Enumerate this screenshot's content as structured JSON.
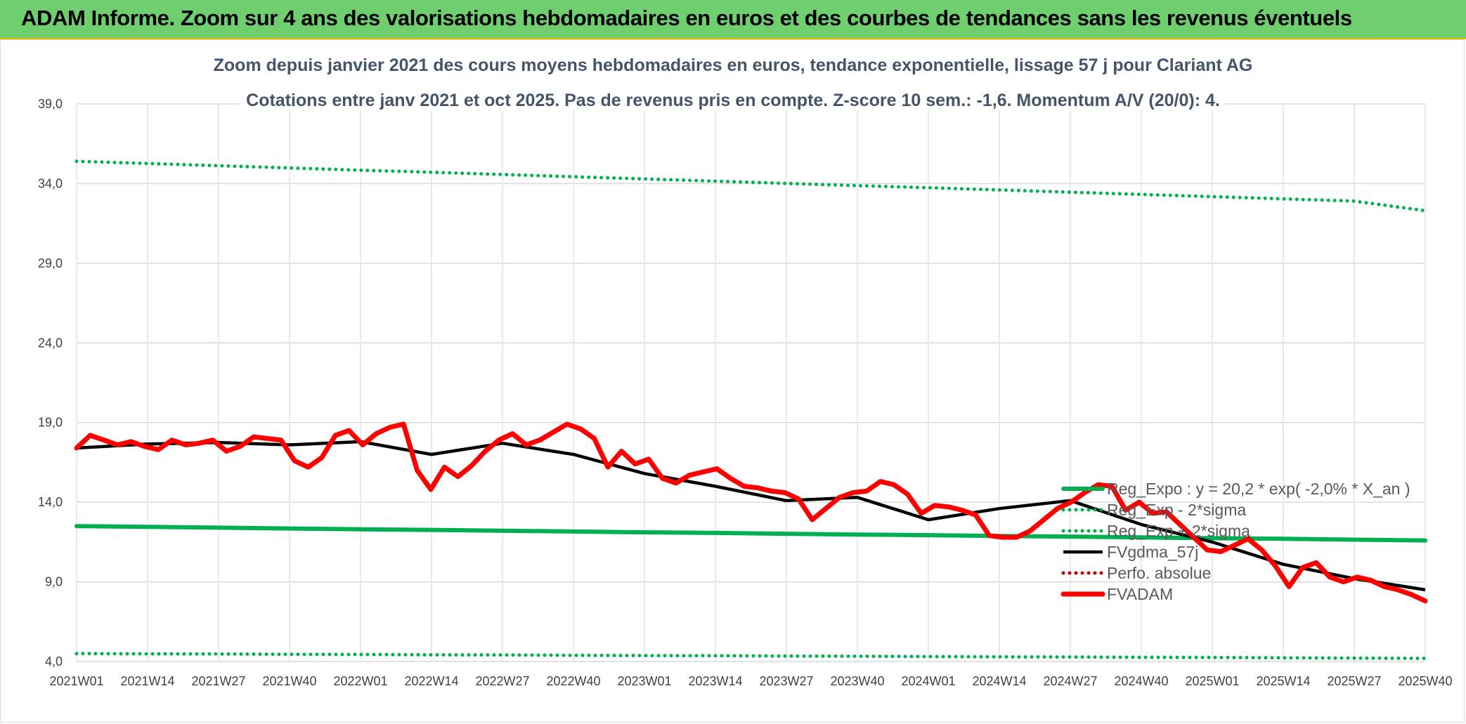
{
  "header": {
    "title": "ADAM Informe. Zoom sur 4 ans des valorisations hebdomadaires en euros et des courbes de tendances sans les revenus éventuels"
  },
  "chart_data": {
    "type": "line",
    "title": "Zoom depuis janvier 2021 des cours moyens hebdomadaires en euros, tendance exponentielle, lissage 57 j pour Clariant AG",
    "subtitle": "Cotations entre janv 2021 et oct 2025. Pas de revenus pris en compte. Z-score 10 sem.: -1,6. Momentum A/V (20/0): 4.",
    "xlabel": "",
    "ylabel": "",
    "ylim": [
      4,
      39
    ],
    "yticks": [
      "4,0",
      "9,0",
      "14,0",
      "19,0",
      "24,0",
      "29,0",
      "34,0",
      "39,0"
    ],
    "x_tick_labels": [
      "2021W01",
      "2021W14",
      "2021W27",
      "2021W40",
      "2022W01",
      "2022W14",
      "2022W27",
      "2022W40",
      "2023W01",
      "2023W14",
      "2023W27",
      "2023W40",
      "2024W01",
      "2024W14",
      "2024W27",
      "2024W40",
      "2025W01",
      "2025W14",
      "2025W27",
      "2025W40"
    ],
    "x_week_count": 247,
    "grid": true,
    "legend_position": "right",
    "colors": {
      "trend": "#00b050",
      "band": "#00b050",
      "smooth": "#000000",
      "perf": "#c00000",
      "price": "#ff0000",
      "grid": "#d9d9d9"
    },
    "series": [
      {
        "name": "Reg_Expo : y = 20,2 * exp( -2,0% *  X_an )",
        "style": "thick-solid",
        "color": "#00b050",
        "values": [
          12.5,
          12.45,
          12.4,
          12.35,
          12.3,
          12.26,
          12.21,
          12.16,
          12.11,
          12.07,
          12.02,
          11.97,
          11.93,
          11.88,
          11.84,
          11.79,
          11.74,
          11.7,
          11.65,
          11.6
        ]
      },
      {
        "name": "Reg_Exp - 2*sigma",
        "style": "dotted",
        "color": "#00b050",
        "values": [
          4.5,
          4.48,
          4.47,
          4.45,
          4.44,
          4.42,
          4.41,
          4.39,
          4.37,
          4.36,
          4.34,
          4.33,
          4.31,
          4.29,
          4.28,
          4.26,
          4.25,
          4.23,
          4.21,
          4.2
        ]
      },
      {
        "name": "Reg_Exp + 2*sigma",
        "style": "dotted",
        "color": "#00b050",
        "values": [
          35.4,
          35.26,
          35.12,
          34.98,
          34.84,
          34.71,
          34.57,
          34.43,
          34.29,
          34.15,
          34.01,
          33.87,
          33.74,
          33.6,
          33.46,
          33.32,
          33.18,
          33.04,
          32.9,
          32.3
        ]
      },
      {
        "name": "FVgdma_57j",
        "style": "solid",
        "color": "#000000",
        "values": [
          17.4,
          17.65,
          17.75,
          17.6,
          17.8,
          17.0,
          17.7,
          17.0,
          15.8,
          15.0,
          14.1,
          14.3,
          12.9,
          13.6,
          14.1,
          12.6,
          11.5,
          10.1,
          9.2,
          8.5
        ]
      },
      {
        "name": "Perfo. absolue",
        "style": "dotted",
        "color": "#c00000",
        "values": []
      },
      {
        "name": "FVADAM",
        "style": "thick-solid",
        "color": "#ff0000",
        "values": [
          17.4,
          18.2,
          17.9,
          17.6,
          17.8,
          17.5,
          17.3,
          17.9,
          17.6,
          17.7,
          17.9,
          17.2,
          17.5,
          18.1,
          18.0,
          17.9,
          16.6,
          16.2,
          16.8,
          18.2,
          18.5,
          17.6,
          18.3,
          18.7,
          18.9,
          16.0,
          14.8,
          16.2,
          15.6,
          16.3,
          17.2,
          17.9,
          18.3,
          17.6,
          17.9,
          18.4,
          18.9,
          18.6,
          18.0,
          16.2,
          17.2,
          16.4,
          16.7,
          15.5,
          15.2,
          15.7,
          15.9,
          16.1,
          15.5,
          15.0,
          14.9,
          14.7,
          14.6,
          14.2,
          12.9,
          13.6,
          14.3,
          14.6,
          14.7,
          15.3,
          15.1,
          14.5,
          13.3,
          13.8,
          13.7,
          13.5,
          13.2,
          11.9,
          11.8,
          11.8,
          12.2,
          12.9,
          13.6,
          14.0,
          14.6,
          15.1,
          15.0,
          13.5,
          14.0,
          13.3,
          13.4,
          12.6,
          11.8,
          11.0,
          10.9,
          11.3,
          11.7,
          11.0,
          10.0,
          8.7,
          9.9,
          10.2,
          9.3,
          9.0,
          9.3,
          9.1,
          8.7,
          8.5,
          8.2,
          7.8
        ]
      }
    ]
  }
}
